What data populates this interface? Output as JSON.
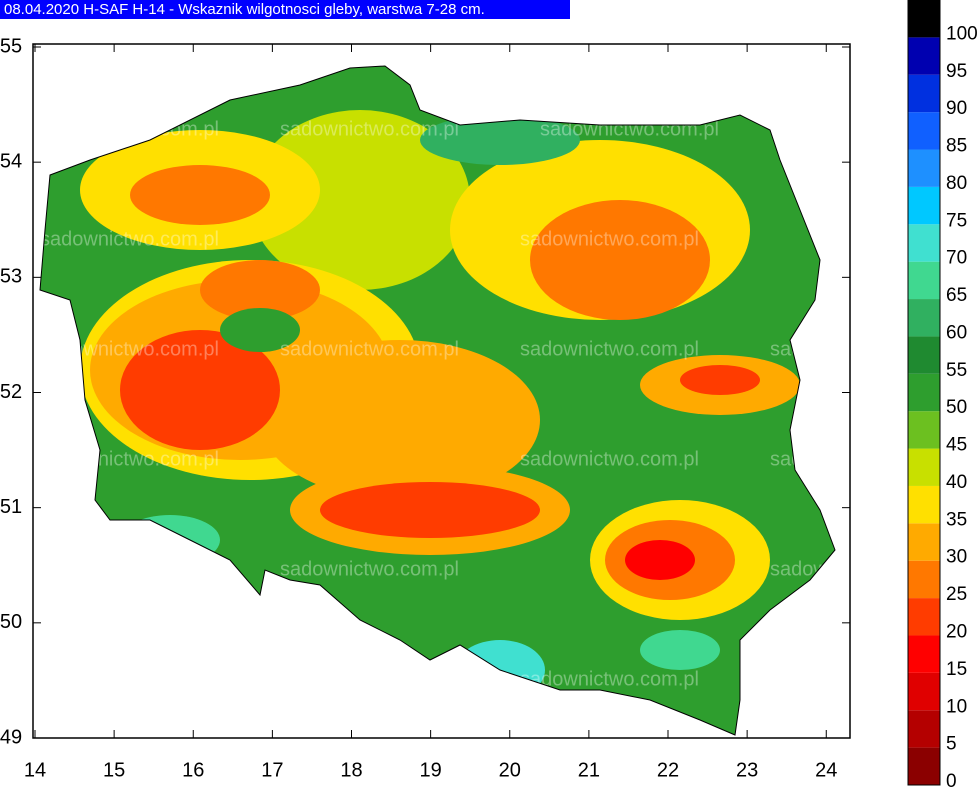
{
  "title": "08.04.2020 H-SAF H-14 - Wskaznik wilgotnosci gleby, warstwa 7-28 cm.",
  "watermark": "sadownictwo.com.pl",
  "map": {
    "xlim": [
      14,
      24.3
    ],
    "ylim": [
      49,
      55
    ],
    "xticks": [
      14,
      15,
      16,
      17,
      18,
      19,
      20,
      21,
      22,
      23,
      24
    ],
    "yticks": [
      49,
      50,
      51,
      52,
      53,
      54,
      55
    ]
  },
  "colorbar": {
    "lim": [
      0,
      105
    ],
    "ticks": [
      0,
      5,
      10,
      15,
      20,
      25,
      30,
      35,
      40,
      45,
      50,
      55,
      60,
      65,
      70,
      75,
      80,
      85,
      90,
      95,
      100
    ],
    "colors": [
      "#8b0000",
      "#b40000",
      "#e00000",
      "#ff0000",
      "#ff3c00",
      "#ff7800",
      "#ffaa00",
      "#ffe000",
      "#c8e000",
      "#6cc020",
      "#2e9e2e",
      "#1f8a30",
      "#30b060",
      "#40d890",
      "#40e0d0",
      "#00c8ff",
      "#1e90ff",
      "#1060ff",
      "#0030e0",
      "#0000b0",
      "#000000"
    ]
  }
}
